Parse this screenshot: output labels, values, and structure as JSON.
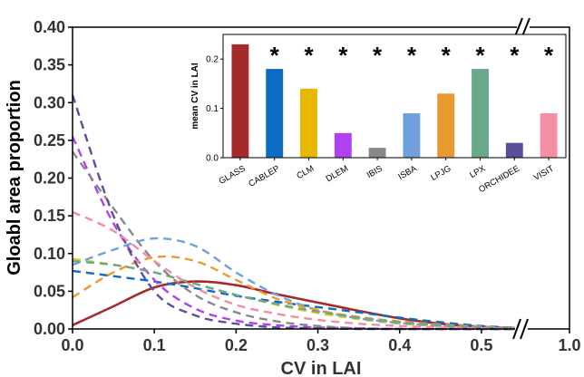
{
  "chart_data": [
    {
      "type": "line",
      "title": "",
      "xlabel": "CV in LAI",
      "ylabel": "Gloabl area proportion",
      "xlim": [
        0,
        1.0
      ],
      "ylim": [
        0,
        0.4
      ],
      "x_axis_break": true,
      "grid": false,
      "x_ticks": [
        "0.0",
        "0.1",
        "0.2",
        "0.3",
        "0.4",
        "0.5",
        "1.0"
      ],
      "y_ticks": [
        "0.00",
        "0.05",
        "0.10",
        "0.15",
        "0.20",
        "0.25",
        "0.30",
        "0.35",
        "0.40"
      ],
      "series": [
        {
          "color": "#a52a2a",
          "dash": "solid",
          "x": [
            0.0,
            0.05,
            0.1,
            0.15,
            0.2,
            0.25,
            0.3,
            0.35,
            0.4,
            0.45,
            0.5,
            0.55
          ],
          "y": [
            0.005,
            0.03,
            0.055,
            0.063,
            0.058,
            0.046,
            0.035,
            0.024,
            0.014,
            0.007,
            0.003,
            0.001
          ]
        },
        {
          "color": "#0c6bc3",
          "dash": "dashed",
          "x": [
            0.0,
            0.05,
            0.1,
            0.15,
            0.2,
            0.25,
            0.3,
            0.35,
            0.4,
            0.45,
            0.5,
            0.55
          ],
          "y": [
            0.077,
            0.07,
            0.063,
            0.054,
            0.044,
            0.036,
            0.029,
            0.022,
            0.015,
            0.009,
            0.004,
            0.001
          ]
        },
        {
          "color": "#e8c82a",
          "dash": "dashed",
          "x": [
            0.0,
            0.05,
            0.1,
            0.15,
            0.2,
            0.25,
            0.3,
            0.35,
            0.4,
            0.45,
            0.5,
            0.55
          ],
          "y": [
            0.093,
            0.085,
            0.075,
            0.06,
            0.045,
            0.032,
            0.021,
            0.013,
            0.007,
            0.004,
            0.002,
            0.0
          ]
        },
        {
          "color": "#b040f0",
          "dash": "dashed",
          "x": [
            0.0,
            0.05,
            0.1,
            0.15,
            0.2,
            0.25,
            0.3,
            0.35,
            0.4,
            0.45,
            0.5,
            0.55
          ],
          "y": [
            0.255,
            0.14,
            0.065,
            0.027,
            0.011,
            0.005,
            0.002,
            0.001,
            0.0,
            0.0,
            0.0,
            0.0
          ]
        },
        {
          "color": "#888888",
          "dash": "dashed",
          "x": [
            0.0,
            0.05,
            0.1,
            0.15,
            0.2,
            0.25,
            0.3,
            0.35,
            0.4,
            0.45,
            0.5,
            0.55
          ],
          "y": [
            0.235,
            0.16,
            0.09,
            0.045,
            0.022,
            0.01,
            0.004,
            0.001,
            0.0,
            0.0,
            0.0,
            0.0
          ]
        },
        {
          "color": "#6fa0dc",
          "dash": "dashed",
          "x": [
            0.0,
            0.05,
            0.1,
            0.15,
            0.2,
            0.25,
            0.3,
            0.35,
            0.4,
            0.45,
            0.5,
            0.55
          ],
          "y": [
            0.085,
            0.105,
            0.12,
            0.11,
            0.075,
            0.045,
            0.025,
            0.014,
            0.008,
            0.004,
            0.002,
            0.001
          ]
        },
        {
          "color": "#e69a30",
          "dash": "dashed",
          "x": [
            0.0,
            0.05,
            0.1,
            0.15,
            0.2,
            0.25,
            0.3,
            0.35,
            0.4,
            0.45,
            0.5,
            0.55
          ],
          "y": [
            0.042,
            0.075,
            0.095,
            0.09,
            0.065,
            0.04,
            0.025,
            0.016,
            0.01,
            0.006,
            0.003,
            0.001
          ]
        },
        {
          "color": "#6aa88a",
          "dash": "dashed",
          "x": [
            0.0,
            0.05,
            0.1,
            0.15,
            0.2,
            0.25,
            0.3,
            0.35,
            0.4,
            0.45,
            0.5,
            0.55
          ],
          "y": [
            0.09,
            0.085,
            0.075,
            0.06,
            0.045,
            0.033,
            0.023,
            0.015,
            0.009,
            0.005,
            0.002,
            0.001
          ]
        },
        {
          "color": "#5c4f9a",
          "dash": "dashed",
          "x": [
            0.0,
            0.05,
            0.1,
            0.15,
            0.2,
            0.25,
            0.3,
            0.35,
            0.4,
            0.45,
            0.5,
            0.55
          ],
          "y": [
            0.31,
            0.15,
            0.05,
            0.018,
            0.007,
            0.002,
            0.001,
            0.0,
            0.0,
            0.0,
            0.0,
            0.0
          ]
        },
        {
          "color": "#f08fa0",
          "dash": "dashed",
          "x": [
            0.0,
            0.05,
            0.1,
            0.15,
            0.2,
            0.25,
            0.3,
            0.35,
            0.4,
            0.45,
            0.5,
            0.55
          ],
          "y": [
            0.155,
            0.13,
            0.09,
            0.055,
            0.032,
            0.02,
            0.012,
            0.007,
            0.004,
            0.002,
            0.001,
            0.0
          ]
        }
      ]
    },
    {
      "type": "bar",
      "title": "",
      "xlabel": "",
      "ylabel": "mean CV in LAI",
      "ylim": [
        0,
        0.25
      ],
      "y_ticks": [
        "0.0",
        "0.1",
        "0.2"
      ],
      "grid": false,
      "categories": [
        "GLASS",
        "CABLEP",
        "CLM",
        "DLEM",
        "IBIS",
        "ISBA",
        "LPJG",
        "LPX",
        "ORCHIDEE",
        "VISIT"
      ],
      "values": [
        0.23,
        0.18,
        0.14,
        0.05,
        0.02,
        0.09,
        0.13,
        0.18,
        0.03,
        0.09
      ],
      "colors": [
        "#a52a2a",
        "#0c6bc3",
        "#e8b800",
        "#b040f0",
        "#888888",
        "#6fa0dc",
        "#e69a30",
        "#6aa88a",
        "#5c4f9a",
        "#f58fa4"
      ],
      "annotations": [
        "",
        "*",
        "*",
        "*",
        "*",
        "*",
        "*",
        "*",
        "*",
        "*"
      ]
    }
  ]
}
